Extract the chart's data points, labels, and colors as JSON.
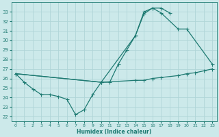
{
  "xlabel": "Humidex (Indice chaleur)",
  "bg_color": "#cce9ea",
  "grid_color": "#b0d5d8",
  "line_color": "#1e7a72",
  "xlim": [
    -0.5,
    23.5
  ],
  "ylim": [
    21.5,
    34.0
  ],
  "xticks": [
    0,
    1,
    2,
    3,
    4,
    5,
    6,
    7,
    8,
    9,
    10,
    11,
    12,
    13,
    14,
    15,
    16,
    17,
    18,
    19,
    20,
    21,
    22,
    23
  ],
  "yticks": [
    22,
    23,
    24,
    25,
    26,
    27,
    28,
    29,
    30,
    31,
    32,
    33
  ],
  "line1_x": [
    0,
    1,
    2,
    3,
    4,
    5,
    6,
    7,
    8,
    9,
    10,
    11,
    12,
    13,
    14,
    15,
    16,
    17,
    18
  ],
  "line1_y": [
    26.5,
    25.6,
    24.9,
    24.3,
    24.3,
    24.1,
    23.8,
    22.2,
    22.7,
    24.3,
    25.6,
    25.6,
    27.5,
    29.0,
    30.5,
    32.8,
    33.4,
    33.4,
    32.9
  ],
  "line2_x": [
    0,
    10,
    14,
    15,
    16,
    17,
    19,
    20,
    23
  ],
  "line2_y": [
    26.5,
    25.6,
    30.5,
    33.0,
    33.4,
    32.9,
    31.2,
    31.2,
    27.5
  ],
  "line3_x": [
    0,
    10,
    14,
    15,
    16,
    17,
    19,
    20,
    21,
    22,
    23
  ],
  "line3_y": [
    26.5,
    25.6,
    25.8,
    25.8,
    26.0,
    26.1,
    26.3,
    26.5,
    26.6,
    26.8,
    27.0
  ]
}
